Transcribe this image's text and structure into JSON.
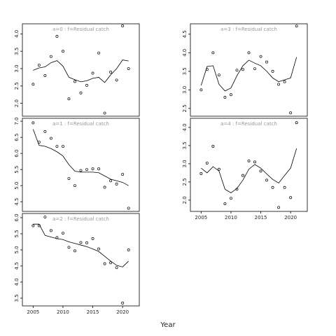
{
  "x_label": "Year",
  "chart_data": [
    {
      "type": "scatter-line",
      "title": "a=0 : f=Residual catch",
      "x": [
        2005,
        2006,
        2007,
        2008,
        2009,
        2010,
        2011,
        2012,
        2013,
        2014,
        2015,
        2016,
        2017,
        2018,
        2019,
        2020,
        2021
      ],
      "values": [
        2.55,
        3.1,
        2.8,
        3.35,
        3.93,
        3.5,
        2.13,
        2.63,
        2.3,
        2.52,
        2.87,
        3.45,
        1.72,
        2.9,
        2.67,
        4.23,
        3.0
      ],
      "fit": [
        2.95,
        3.02,
        3.05,
        3.17,
        3.23,
        3.07,
        2.75,
        2.68,
        2.62,
        2.65,
        2.72,
        2.75,
        2.6,
        2.82,
        3.0,
        3.25,
        3.22
      ],
      "xlim": [
        2003.2,
        2022.8
      ],
      "ylim": [
        1.63,
        4.29
      ],
      "yticks": [
        {
          "value": 2,
          "label": "2.0"
        },
        2.5,
        {
          "value": 3,
          "label": "3.0"
        },
        3.5,
        {
          "value": 4,
          "label": "4.0"
        }
      ]
    },
    {
      "type": "scatter-line",
      "title": "a=1 : f=Residual catch",
      "x": [
        2005,
        2006,
        2007,
        2008,
        2009,
        2010,
        2011,
        2012,
        2013,
        2014,
        2015,
        2016,
        2017,
        2018,
        2019,
        2020,
        2021
      ],
      "values": [
        6.95,
        6.35,
        6.68,
        6.47,
        6.22,
        6.22,
        5.22,
        5.0,
        5.47,
        5.5,
        5.52,
        5.52,
        4.95,
        5.15,
        5.05,
        5.35,
        4.3
      ],
      "fit": [
        6.75,
        6.25,
        6.22,
        6.15,
        6.05,
        5.92,
        5.65,
        5.45,
        5.42,
        5.42,
        5.42,
        5.4,
        5.3,
        5.2,
        5.15,
        5.1,
        5.0
      ],
      "xlim": [
        2003.2,
        2022.8
      ],
      "ylim": [
        4.2,
        7.09
      ],
      "yticks": [
        4.5,
        {
          "value": 5,
          "label": "5.0"
        },
        5.5,
        {
          "value": 6,
          "label": "6.0"
        },
        6.5,
        {
          "value": 7,
          "label": "7.0"
        }
      ]
    },
    {
      "type": "scatter-line",
      "title": "a=2 : f=Residual catch",
      "x": [
        2005,
        2006,
        2007,
        2008,
        2009,
        2010,
        2011,
        2012,
        2013,
        2014,
        2015,
        2016,
        2017,
        2018,
        2019,
        2020,
        2021
      ],
      "values": [
        5.75,
        5.75,
        6.02,
        5.6,
        5.38,
        5.52,
        5.08,
        4.97,
        5.23,
        5.22,
        5.35,
        5.03,
        4.57,
        4.6,
        4.45,
        3.35,
        5.0
      ],
      "fit": [
        5.8,
        5.8,
        5.45,
        5.4,
        5.35,
        5.32,
        5.25,
        5.2,
        5.15,
        5.1,
        5.03,
        4.95,
        4.8,
        4.65,
        4.52,
        4.47,
        4.65
      ],
      "xlim": [
        2003.2,
        2022.8
      ],
      "ylim": [
        3.26,
        6.13
      ],
      "xticks": [
        2005,
        2010,
        2015,
        2020
      ],
      "yticks": [
        3.5,
        {
          "value": 4,
          "label": "4.0"
        },
        4.5,
        {
          "value": 5,
          "label": "5.0"
        },
        5.5,
        {
          "value": 6,
          "label": "6.0"
        }
      ]
    },
    {
      "type": "scatter-line",
      "title": "a=3 : f=Residual catch",
      "x": [
        2005,
        2006,
        2007,
        2008,
        2009,
        2010,
        2011,
        2012,
        2013,
        2014,
        2015,
        2016,
        2017,
        2018,
        2019,
        2020,
        2021
      ],
      "values": [
        3.0,
        3.55,
        4.0,
        3.4,
        2.8,
        2.87,
        3.53,
        3.55,
        4.0,
        3.57,
        3.9,
        3.75,
        3.5,
        3.15,
        3.22,
        2.38,
        4.72
      ],
      "fit": [
        3.12,
        3.63,
        3.65,
        3.15,
        2.97,
        3.05,
        3.38,
        3.65,
        3.8,
        3.72,
        3.65,
        3.5,
        3.32,
        3.22,
        3.27,
        3.32,
        3.88
      ],
      "xlim": [
        2003.2,
        2022.8
      ],
      "ylim": [
        2.29,
        4.78
      ],
      "yticks": [
        2.5,
        {
          "value": 3,
          "label": "3.0"
        },
        3.5,
        {
          "value": 4,
          "label": "4.0"
        },
        4.5
      ]
    },
    {
      "type": "scatter-line",
      "title": "a=4 : f=Residual catch",
      "x": [
        2005,
        2006,
        2007,
        2008,
        2009,
        2010,
        2011,
        2012,
        2013,
        2014,
        2015,
        2016,
        2017,
        2018,
        2019,
        2020,
        2021
      ],
      "values": [
        2.73,
        3.02,
        3.48,
        2.85,
        1.9,
        2.05,
        2.3,
        2.68,
        3.08,
        3.05,
        2.8,
        2.55,
        2.35,
        1.8,
        2.35,
        2.07,
        4.13
      ],
      "fit": [
        2.88,
        2.75,
        2.92,
        2.8,
        2.3,
        2.2,
        2.32,
        2.55,
        2.85,
        2.98,
        2.88,
        2.72,
        2.57,
        2.47,
        2.68,
        2.88,
        3.42
      ],
      "xlim": [
        2003.2,
        2022.8
      ],
      "ylim": [
        1.69,
        4.25
      ],
      "xticks": [
        2005,
        2010,
        2015,
        2020
      ],
      "yticks": [
        {
          "value": 2,
          "label": "2.0"
        },
        2.5,
        {
          "value": 3,
          "label": "3.0"
        },
        3.5,
        {
          "value": 4,
          "label": "4.0"
        }
      ]
    }
  ]
}
